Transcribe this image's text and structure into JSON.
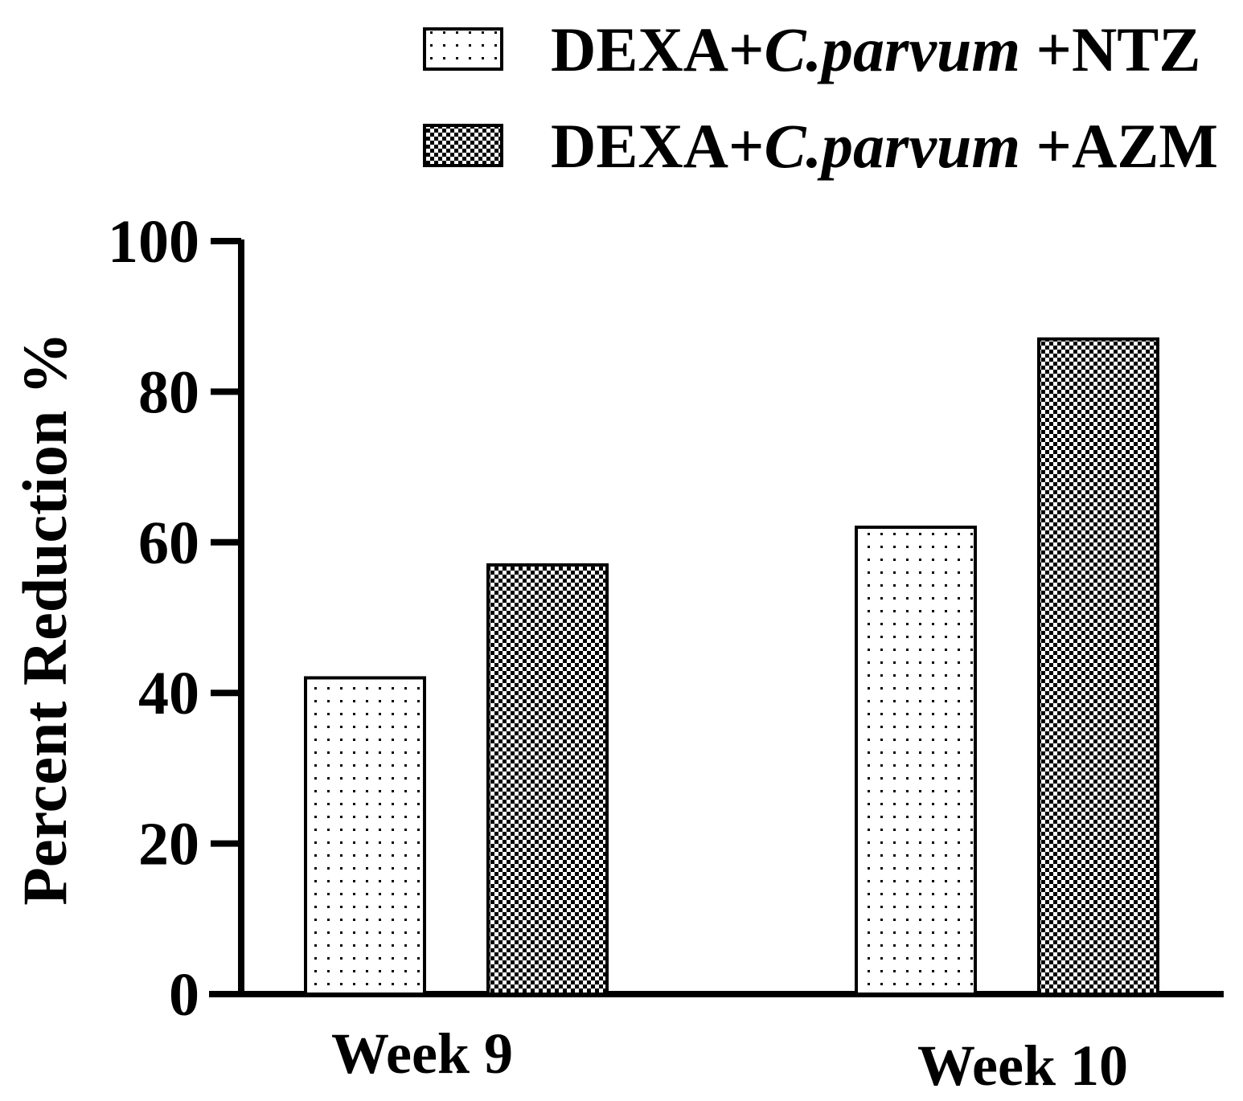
{
  "chart_data": {
    "type": "bar",
    "categories": [
      "Week 9",
      "Week 10"
    ],
    "series": [
      {
        "name": "DEXA+C.parvum +NTZ",
        "name_parts": [
          "DEXA+",
          "C.parvum",
          " +NTZ"
        ],
        "pattern": "dots",
        "values": [
          42,
          62
        ]
      },
      {
        "name": "DEXA+C.parvum +AZM",
        "name_parts": [
          "DEXA+",
          "C.parvum",
          " +AZM"
        ],
        "pattern": "checker",
        "values": [
          57,
          87
        ]
      }
    ],
    "ylabel": "Percent Reduction %",
    "xlabel": "",
    "title": "",
    "ylim": [
      0,
      100
    ],
    "yticks": [
      0,
      20,
      40,
      60,
      80,
      100
    ],
    "legend_position": "top-right",
    "grid": false,
    "colors": {
      "axis": "#000000",
      "bar_fill": "#ffffff",
      "bar_pattern": "#000000"
    }
  }
}
